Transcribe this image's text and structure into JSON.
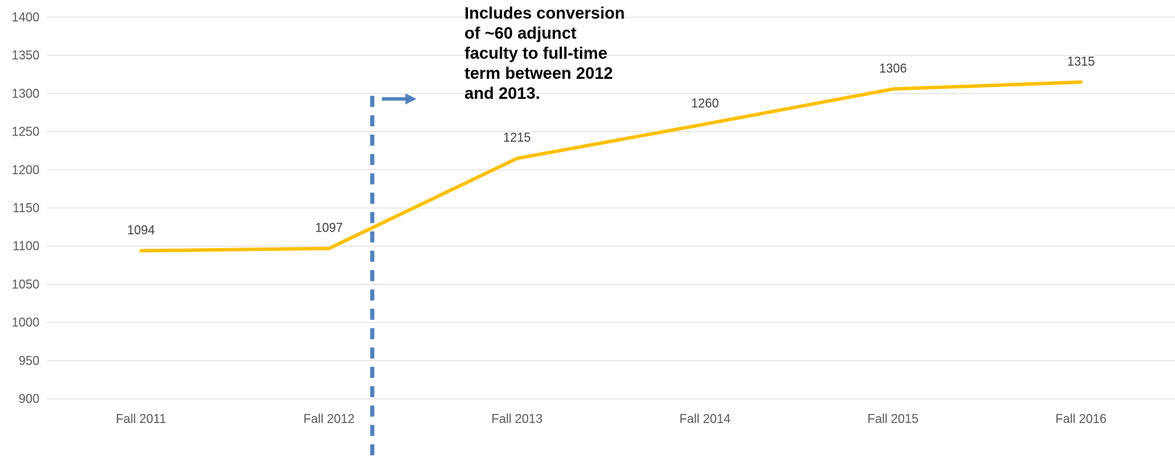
{
  "chart_data": {
    "type": "line",
    "title": "",
    "xlabel": "",
    "ylabel": "",
    "categories": [
      "Fall 2011",
      "Fall 2012",
      "Fall 2013",
      "Fall 2014",
      "Fall 2015",
      "Fall 2016"
    ],
    "series": [
      {
        "values": [
          1094,
          1097,
          1215,
          1260,
          1306,
          1315
        ],
        "color": "#ffc000"
      }
    ],
    "data_labels": [
      "1094",
      "1097",
      "1215",
      "1260",
      "1306",
      "1315"
    ],
    "ylim": [
      900,
      1400
    ],
    "yticks": [
      900,
      950,
      1000,
      1050,
      1100,
      1150,
      1200,
      1250,
      1300,
      1350,
      1400
    ],
    "grid": true,
    "legend": "none",
    "marker_color": "#4f81bd",
    "annotation": {
      "lines": [
        "Includes conversion",
        "of ~60 adjunct",
        "faculty to full-time",
        "term between 2012",
        "and 2013."
      ]
    }
  }
}
